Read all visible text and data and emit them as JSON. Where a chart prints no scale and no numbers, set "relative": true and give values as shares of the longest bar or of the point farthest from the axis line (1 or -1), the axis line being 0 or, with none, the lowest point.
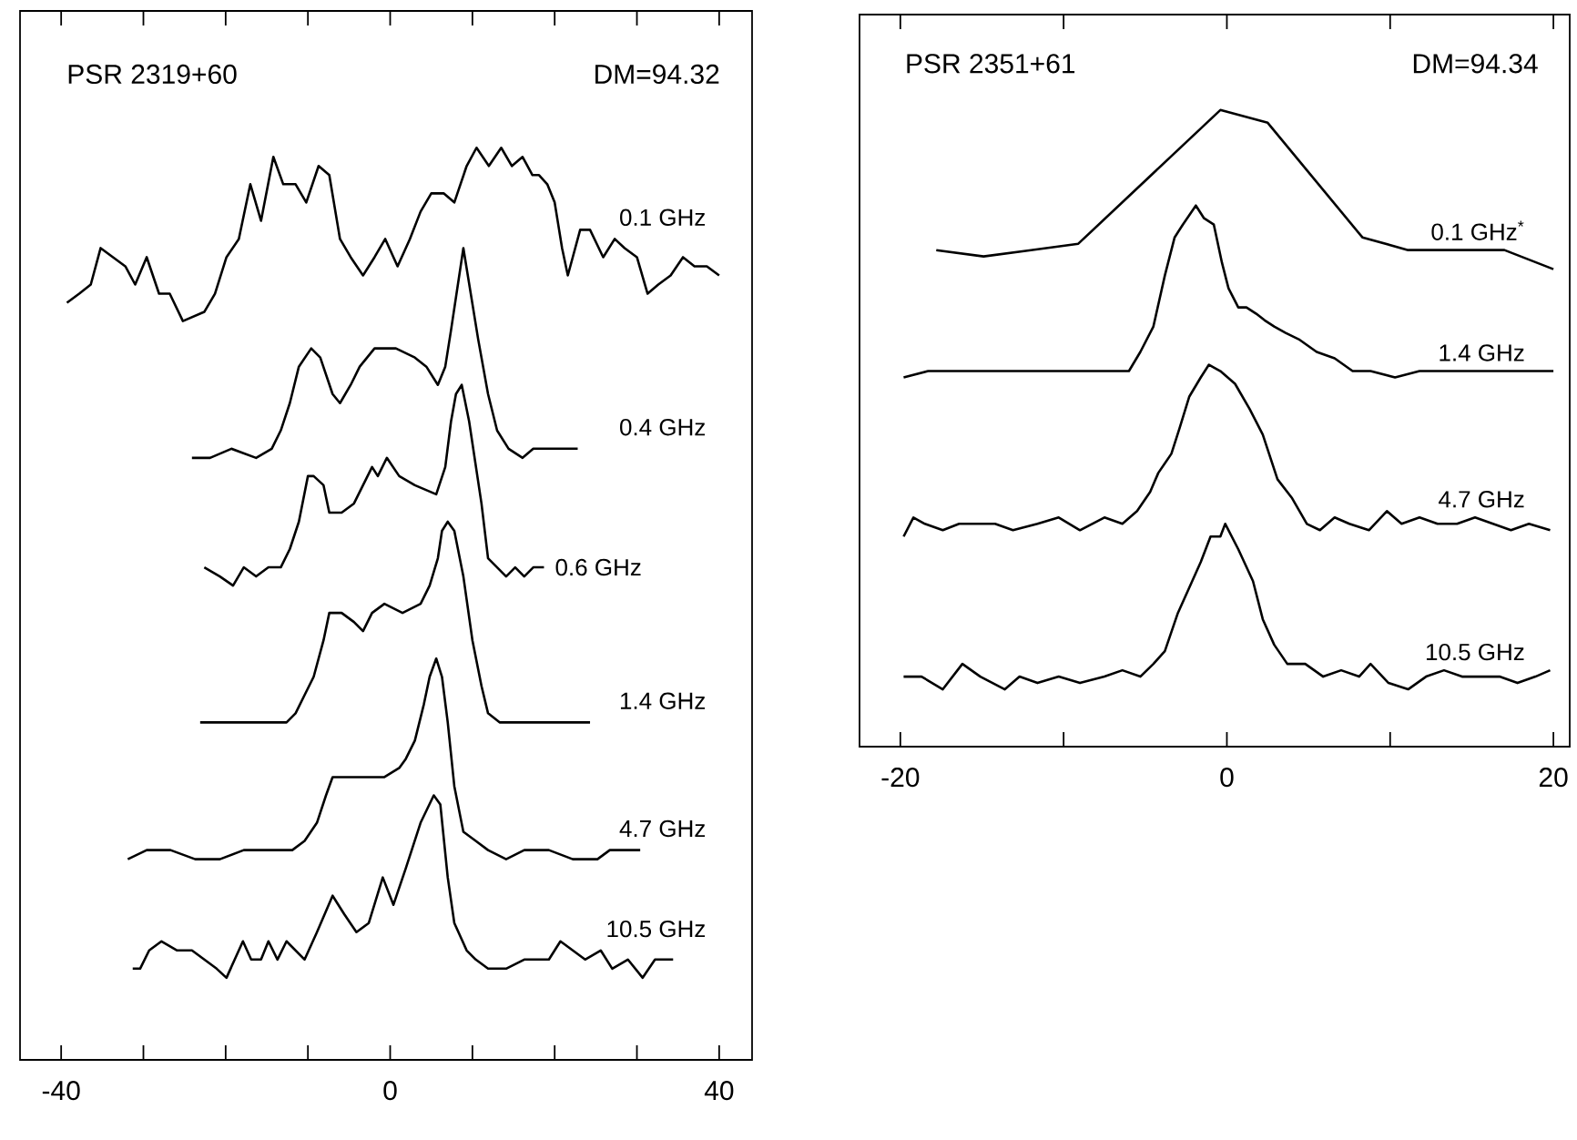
{
  "chart_data": [
    {
      "type": "line",
      "title": "PSR 2319+60",
      "annotations": [
        "DM=94.32"
      ],
      "relative": true,
      "xlim": [
        -45,
        44
      ],
      "xticks": [
        -40,
        {
          "value": -30,
          "label": null
        },
        {
          "value": -20,
          "label": null
        },
        {
          "value": -10,
          "label": null
        },
        0,
        {
          "value": 10,
          "label": null
        },
        {
          "value": 20,
          "label": null
        },
        {
          "value": 30,
          "label": null
        },
        40
      ],
      "series": [
        {
          "name": "0.1 GHz",
          "color": "#000000",
          "x": [
            -39.3,
            -37.8,
            -36.4,
            -35.2,
            -33.7,
            -32.2,
            -31.0,
            -29.6,
            -28.1,
            -26.8,
            -25.2,
            -22.6,
            -21.3,
            -19.9,
            -18.4,
            -17.0,
            -15.7,
            -14.2,
            -13.0,
            -11.5,
            -10.2,
            -8.7,
            -7.4,
            -6.1,
            -4.8,
            -3.3,
            -1.9,
            -0.6,
            0.9,
            2.4,
            3.7,
            5.0,
            6.5,
            7.8,
            9.3,
            10.5,
            12.0,
            13.5,
            14.8,
            16.1,
            17.3,
            18.1,
            19.1,
            20.0,
            20.9,
            21.6,
            23.1,
            24.3,
            25.9,
            27.3,
            28.5,
            30.0,
            31.3,
            32.6,
            34.1,
            35.6,
            37.0,
            38.5,
            40.0
          ],
          "values": [
            0.83,
            0.84,
            0.85,
            0.89,
            0.88,
            0.87,
            0.85,
            0.88,
            0.84,
            0.84,
            0.81,
            0.82,
            0.84,
            0.88,
            0.9,
            0.96,
            0.92,
            0.99,
            0.96,
            0.96,
            0.94,
            0.98,
            0.97,
            0.9,
            0.88,
            0.86,
            0.88,
            0.9,
            0.87,
            0.9,
            0.93,
            0.95,
            0.95,
            0.94,
            0.98,
            1.0,
            0.98,
            1.0,
            0.98,
            0.99,
            0.97,
            0.97,
            0.96,
            0.94,
            0.89,
            0.86,
            0.91,
            0.91,
            0.88,
            0.9,
            0.89,
            0.88,
            0.84,
            0.85,
            0.86,
            0.88,
            0.87,
            0.87,
            0.86
          ]
        },
        {
          "name": "0.4 GHz",
          "color": "#000000",
          "x": [
            -24.1,
            -21.9,
            -19.3,
            -16.3,
            -14.4,
            -13.3,
            -12.2,
            -11.1,
            -9.6,
            -8.5,
            -7.0,
            -6.1,
            -4.8,
            -3.7,
            -1.9,
            0.7,
            3.0,
            4.4,
            5.8,
            6.7,
            7.4,
            8.9,
            10.7,
            11.9,
            13.0,
            14.4,
            16.1,
            17.4,
            19.3,
            21.1,
            22.8
          ],
          "values": [
            0.66,
            0.66,
            0.67,
            0.66,
            0.67,
            0.69,
            0.72,
            0.76,
            0.78,
            0.77,
            0.73,
            0.72,
            0.74,
            0.76,
            0.78,
            0.78,
            0.77,
            0.76,
            0.74,
            0.76,
            0.8,
            0.89,
            0.79,
            0.73,
            0.69,
            0.67,
            0.66,
            0.67,
            0.67,
            0.67,
            0.67
          ]
        },
        {
          "name": "0.6 GHz",
          "color": "#000000",
          "x": [
            -22.6,
            -20.7,
            -19.1,
            -17.8,
            -16.3,
            -14.8,
            -13.3,
            -12.2,
            -11.1,
            -10.0,
            -9.3,
            -8.1,
            -7.4,
            -5.9,
            -4.4,
            -3.3,
            -2.2,
            -1.5,
            -0.4,
            1.1,
            3.0,
            5.6,
            6.7,
            7.4,
            8.0,
            8.7,
            9.6,
            11.1,
            11.9,
            13.0,
            14.1,
            15.2,
            16.3,
            17.4,
            18.7
          ],
          "values": [
            0.54,
            0.53,
            0.52,
            0.54,
            0.53,
            0.54,
            0.54,
            0.56,
            0.59,
            0.64,
            0.64,
            0.63,
            0.6,
            0.6,
            0.61,
            0.63,
            0.65,
            0.64,
            0.66,
            0.64,
            0.63,
            0.62,
            0.65,
            0.7,
            0.73,
            0.74,
            0.7,
            0.61,
            0.55,
            0.54,
            0.53,
            0.54,
            0.53,
            0.54,
            0.54
          ]
        },
        {
          "name": "1.4 GHz",
          "color": "#000000",
          "x": [
            -23.1,
            -20.7,
            -17.8,
            -14.8,
            -12.6,
            -11.5,
            -10.4,
            -9.3,
            -8.1,
            -7.4,
            -5.9,
            -4.4,
            -3.3,
            -2.2,
            -0.7,
            1.5,
            3.7,
            4.8,
            5.8,
            6.3,
            7.0,
            7.8,
            8.9,
            10.0,
            11.1,
            11.9,
            13.3,
            15.6,
            17.8,
            20.0,
            22.2,
            24.3
          ],
          "values": [
            0.37,
            0.37,
            0.37,
            0.37,
            0.37,
            0.38,
            0.4,
            0.42,
            0.46,
            0.49,
            0.49,
            0.48,
            0.47,
            0.49,
            0.5,
            0.49,
            0.5,
            0.52,
            0.55,
            0.58,
            0.59,
            0.58,
            0.53,
            0.46,
            0.41,
            0.38,
            0.37,
            0.37,
            0.37,
            0.37,
            0.37,
            0.37
          ]
        },
        {
          "name": "4.7 GHz",
          "color": "#000000",
          "x": [
            -31.9,
            -29.6,
            -26.7,
            -23.7,
            -20.7,
            -17.8,
            -14.8,
            -11.9,
            -10.4,
            -8.9,
            -7.8,
            -7.0,
            -5.2,
            -3.0,
            -0.7,
            1.1,
            1.9,
            3.0,
            4.1,
            4.8,
            5.6,
            6.3,
            7.0,
            7.8,
            8.9,
            10.4,
            11.9,
            14.1,
            16.3,
            19.3,
            22.2,
            25.2,
            26.7,
            28.1,
            30.4
          ],
          "values": [
            0.22,
            0.23,
            0.23,
            0.22,
            0.22,
            0.23,
            0.23,
            0.23,
            0.24,
            0.26,
            0.29,
            0.31,
            0.31,
            0.31,
            0.31,
            0.32,
            0.33,
            0.35,
            0.39,
            0.42,
            0.44,
            0.42,
            0.37,
            0.3,
            0.25,
            0.24,
            0.23,
            0.22,
            0.23,
            0.23,
            0.22,
            0.22,
            0.23,
            0.23,
            0.23
          ]
        },
        {
          "name": "10.5 GHz",
          "color": "#000000",
          "x": [
            -31.3,
            -30.4,
            -29.3,
            -27.8,
            -25.9,
            -24.1,
            -22.6,
            -21.1,
            -19.9,
            -18.9,
            -17.9,
            -16.9,
            -15.7,
            -14.8,
            -13.7,
            -12.6,
            -11.5,
            -10.4,
            -8.9,
            -7.0,
            -5.6,
            -4.1,
            -2.6,
            -0.9,
            0.4,
            1.9,
            3.7,
            5.3,
            6.1,
            7.0,
            7.8,
            9.3,
            10.4,
            11.9,
            14.1,
            16.3,
            17.8,
            19.3,
            20.7,
            22.2,
            23.7,
            25.6,
            27.0,
            28.9,
            30.7,
            32.2,
            34.4
          ],
          "values": [
            0.1,
            0.1,
            0.12,
            0.13,
            0.12,
            0.12,
            0.11,
            0.1,
            0.09,
            0.11,
            0.13,
            0.11,
            0.11,
            0.13,
            0.11,
            0.13,
            0.12,
            0.11,
            0.14,
            0.18,
            0.16,
            0.14,
            0.15,
            0.2,
            0.17,
            0.21,
            0.26,
            0.29,
            0.28,
            0.2,
            0.15,
            0.12,
            0.11,
            0.1,
            0.1,
            0.11,
            0.11,
            0.11,
            0.13,
            0.12,
            0.11,
            0.12,
            0.1,
            0.11,
            0.09,
            0.11,
            0.11
          ]
        }
      ]
    },
    {
      "type": "line",
      "title": "PSR 2351+61",
      "annotations": [
        "DM=94.34"
      ],
      "relative": true,
      "xlim": [
        -22.5,
        21
      ],
      "xticks": [
        -20,
        {
          "value": -10,
          "label": null
        },
        0,
        {
          "value": 10,
          "label": null
        },
        20
      ],
      "series": [
        {
          "name": "0.1 GHz$^{*}$",
          "color": "#000000",
          "x": [
            -17.8,
            -14.9,
            -12.0,
            -9.1,
            -0.4,
            2.5,
            8.3,
            11.1,
            14.1,
            17.0,
            20.0
          ],
          "values": [
            0.78,
            0.77,
            0.78,
            0.79,
            1.0,
            0.98,
            0.8,
            0.78,
            0.78,
            0.78,
            0.75
          ]
        },
        {
          "name": "1.4 GHz",
          "color": "#000000",
          "x": [
            -19.8,
            -18.3,
            -16.4,
            -14.2,
            -12.0,
            -9.7,
            -7.5,
            -6.0,
            -5.3,
            -4.5,
            -3.8,
            -3.2,
            -2.7,
            -1.9,
            -1.4,
            -0.8,
            -0.3,
            0.1,
            0.7,
            1.2,
            1.8,
            2.3,
            2.9,
            3.6,
            4.4,
            5.5,
            6.6,
            7.7,
            8.8,
            10.3,
            11.8,
            13.3,
            14.8,
            16.3,
            17.8,
            19.3,
            20.0
          ],
          "values": [
            0.58,
            0.59,
            0.59,
            0.59,
            0.59,
            0.59,
            0.59,
            0.59,
            0.62,
            0.66,
            0.74,
            0.8,
            0.82,
            0.85,
            0.83,
            0.82,
            0.76,
            0.72,
            0.69,
            0.69,
            0.68,
            0.67,
            0.66,
            0.65,
            0.64,
            0.62,
            0.61,
            0.59,
            0.59,
            0.58,
            0.59,
            0.59,
            0.59,
            0.59,
            0.59,
            0.59,
            0.59
          ]
        },
        {
          "name": "4.7 GHz",
          "color": "#000000",
          "x": [
            -19.8,
            -19.2,
            -18.5,
            -17.4,
            -16.4,
            -15.3,
            -14.2,
            -13.1,
            -11.6,
            -10.3,
            -9.0,
            -7.5,
            -6.4,
            -5.5,
            -4.7,
            -4.2,
            -3.4,
            -2.9,
            -2.3,
            -1.6,
            -1.1,
            -0.4,
            0.5,
            1.4,
            2.2,
            3.1,
            4.0,
            4.9,
            5.7,
            6.6,
            7.5,
            8.7,
            9.8,
            10.7,
            11.8,
            12.9,
            14.1,
            15.2,
            16.3,
            17.4,
            18.5,
            19.8
          ],
          "values": [
            0.33,
            0.36,
            0.35,
            0.34,
            0.35,
            0.35,
            0.35,
            0.34,
            0.35,
            0.36,
            0.34,
            0.36,
            0.35,
            0.37,
            0.4,
            0.43,
            0.46,
            0.5,
            0.55,
            0.58,
            0.6,
            0.59,
            0.57,
            0.53,
            0.49,
            0.42,
            0.39,
            0.35,
            0.34,
            0.36,
            0.35,
            0.34,
            0.37,
            0.35,
            0.36,
            0.35,
            0.35,
            0.36,
            0.35,
            0.34,
            0.35,
            0.34
          ]
        },
        {
          "name": "10.5 GHz",
          "color": "#000000",
          "x": [
            -19.8,
            -18.7,
            -17.4,
            -16.2,
            -15.1,
            -13.6,
            -12.7,
            -11.6,
            -10.3,
            -9.0,
            -7.5,
            -6.4,
            -5.3,
            -4.5,
            -3.8,
            -3.0,
            -2.3,
            -1.6,
            -1.0,
            -0.4,
            -0.1,
            0.7,
            1.6,
            2.2,
            2.9,
            3.7,
            4.8,
            5.9,
            7.0,
            8.1,
            8.8,
            9.9,
            11.1,
            12.2,
            13.3,
            14.4,
            15.5,
            16.7,
            17.8,
            18.9,
            19.8
          ],
          "values": [
            0.11,
            0.11,
            0.09,
            0.13,
            0.11,
            0.09,
            0.11,
            0.1,
            0.11,
            0.1,
            0.11,
            0.12,
            0.11,
            0.13,
            0.15,
            0.21,
            0.25,
            0.29,
            0.33,
            0.33,
            0.35,
            0.31,
            0.26,
            0.2,
            0.16,
            0.13,
            0.13,
            0.11,
            0.12,
            0.11,
            0.13,
            0.1,
            0.09,
            0.11,
            0.12,
            0.11,
            0.11,
            0.11,
            0.1,
            0.11,
            0.12
          ]
        }
      ]
    }
  ]
}
